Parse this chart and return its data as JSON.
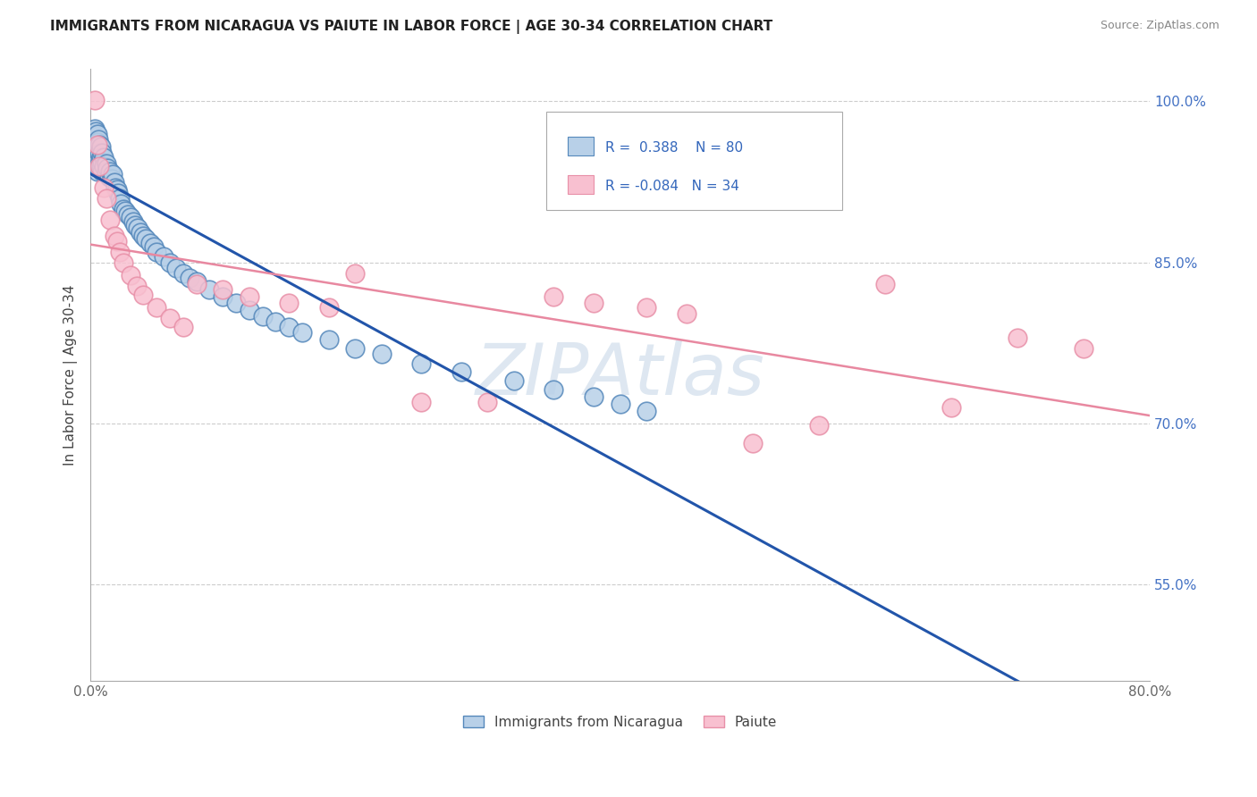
{
  "title": "IMMIGRANTS FROM NICARAGUA VS PAIUTE IN LABOR FORCE | AGE 30-34 CORRELATION CHART",
  "source": "Source: ZipAtlas.com",
  "ylabel": "In Labor Force | Age 30-34",
  "xlim": [
    0.0,
    0.8
  ],
  "ylim": [
    0.46,
    1.03
  ],
  "xticks": [
    0.0,
    0.8
  ],
  "xticklabels": [
    "0.0%",
    "80.0%"
  ],
  "yticks": [
    0.55,
    0.7,
    0.85,
    1.0
  ],
  "yticklabels": [
    "55.0%",
    "70.0%",
    "85.0%",
    "100.0%"
  ],
  "blue_r": 0.388,
  "blue_n": 80,
  "pink_r": -0.084,
  "pink_n": 34,
  "blue_color": "#b8d0e8",
  "blue_edge": "#5588bb",
  "pink_color": "#f8c0d0",
  "pink_edge": "#e890a8",
  "blue_line_color": "#2255aa",
  "pink_line_color": "#e888a0",
  "watermark": "ZIPAtlas",
  "watermark_color_zip": "#c8d8e8",
  "watermark_color_atlas": "#7aabe0",
  "blue_x": [
    0.002,
    0.002,
    0.002,
    0.003,
    0.003,
    0.003,
    0.004,
    0.004,
    0.004,
    0.004,
    0.005,
    0.005,
    0.005,
    0.005,
    0.005,
    0.006,
    0.006,
    0.006,
    0.006,
    0.007,
    0.007,
    0.007,
    0.008,
    0.008,
    0.008,
    0.009,
    0.009,
    0.009,
    0.01,
    0.01,
    0.012,
    0.012,
    0.013,
    0.014,
    0.015,
    0.016,
    0.017,
    0.018,
    0.019,
    0.02,
    0.021,
    0.022,
    0.023,
    0.025,
    0.026,
    0.028,
    0.03,
    0.032,
    0.034,
    0.036,
    0.038,
    0.04,
    0.042,
    0.045,
    0.048,
    0.05,
    0.055,
    0.06,
    0.065,
    0.07,
    0.075,
    0.08,
    0.09,
    0.1,
    0.11,
    0.12,
    0.13,
    0.14,
    0.15,
    0.16,
    0.18,
    0.2,
    0.22,
    0.25,
    0.28,
    0.32,
    0.35,
    0.38,
    0.4,
    0.42
  ],
  "blue_y": [
    0.97,
    0.965,
    0.96,
    0.975,
    0.968,
    0.958,
    0.972,
    0.962,
    0.955,
    0.948,
    0.97,
    0.962,
    0.955,
    0.945,
    0.935,
    0.965,
    0.955,
    0.945,
    0.938,
    0.96,
    0.952,
    0.942,
    0.958,
    0.948,
    0.94,
    0.952,
    0.943,
    0.935,
    0.948,
    0.94,
    0.942,
    0.935,
    0.938,
    0.93,
    0.935,
    0.928,
    0.932,
    0.925,
    0.92,
    0.918,
    0.915,
    0.91,
    0.905,
    0.9,
    0.898,
    0.895,
    0.892,
    0.888,
    0.885,
    0.882,
    0.878,
    0.875,
    0.872,
    0.868,
    0.865,
    0.86,
    0.856,
    0.85,
    0.845,
    0.84,
    0.836,
    0.832,
    0.825,
    0.818,
    0.812,
    0.806,
    0.8,
    0.795,
    0.79,
    0.785,
    0.778,
    0.77,
    0.765,
    0.756,
    0.748,
    0.74,
    0.732,
    0.725,
    0.718,
    0.712
  ],
  "pink_x": [
    0.003,
    0.005,
    0.007,
    0.01,
    0.012,
    0.015,
    0.018,
    0.02,
    0.022,
    0.025,
    0.03,
    0.035,
    0.04,
    0.05,
    0.06,
    0.07,
    0.08,
    0.1,
    0.12,
    0.15,
    0.18,
    0.2,
    0.25,
    0.3,
    0.35,
    0.38,
    0.42,
    0.45,
    0.5,
    0.55,
    0.6,
    0.65,
    0.7,
    0.75
  ],
  "pink_y": [
    1.001,
    0.96,
    0.94,
    0.92,
    0.91,
    0.89,
    0.875,
    0.87,
    0.86,
    0.85,
    0.838,
    0.828,
    0.82,
    0.808,
    0.798,
    0.79,
    0.83,
    0.825,
    0.818,
    0.812,
    0.808,
    0.84,
    0.72,
    0.72,
    0.818,
    0.812,
    0.808,
    0.802,
    0.682,
    0.698,
    0.83,
    0.715,
    0.78,
    0.77
  ]
}
